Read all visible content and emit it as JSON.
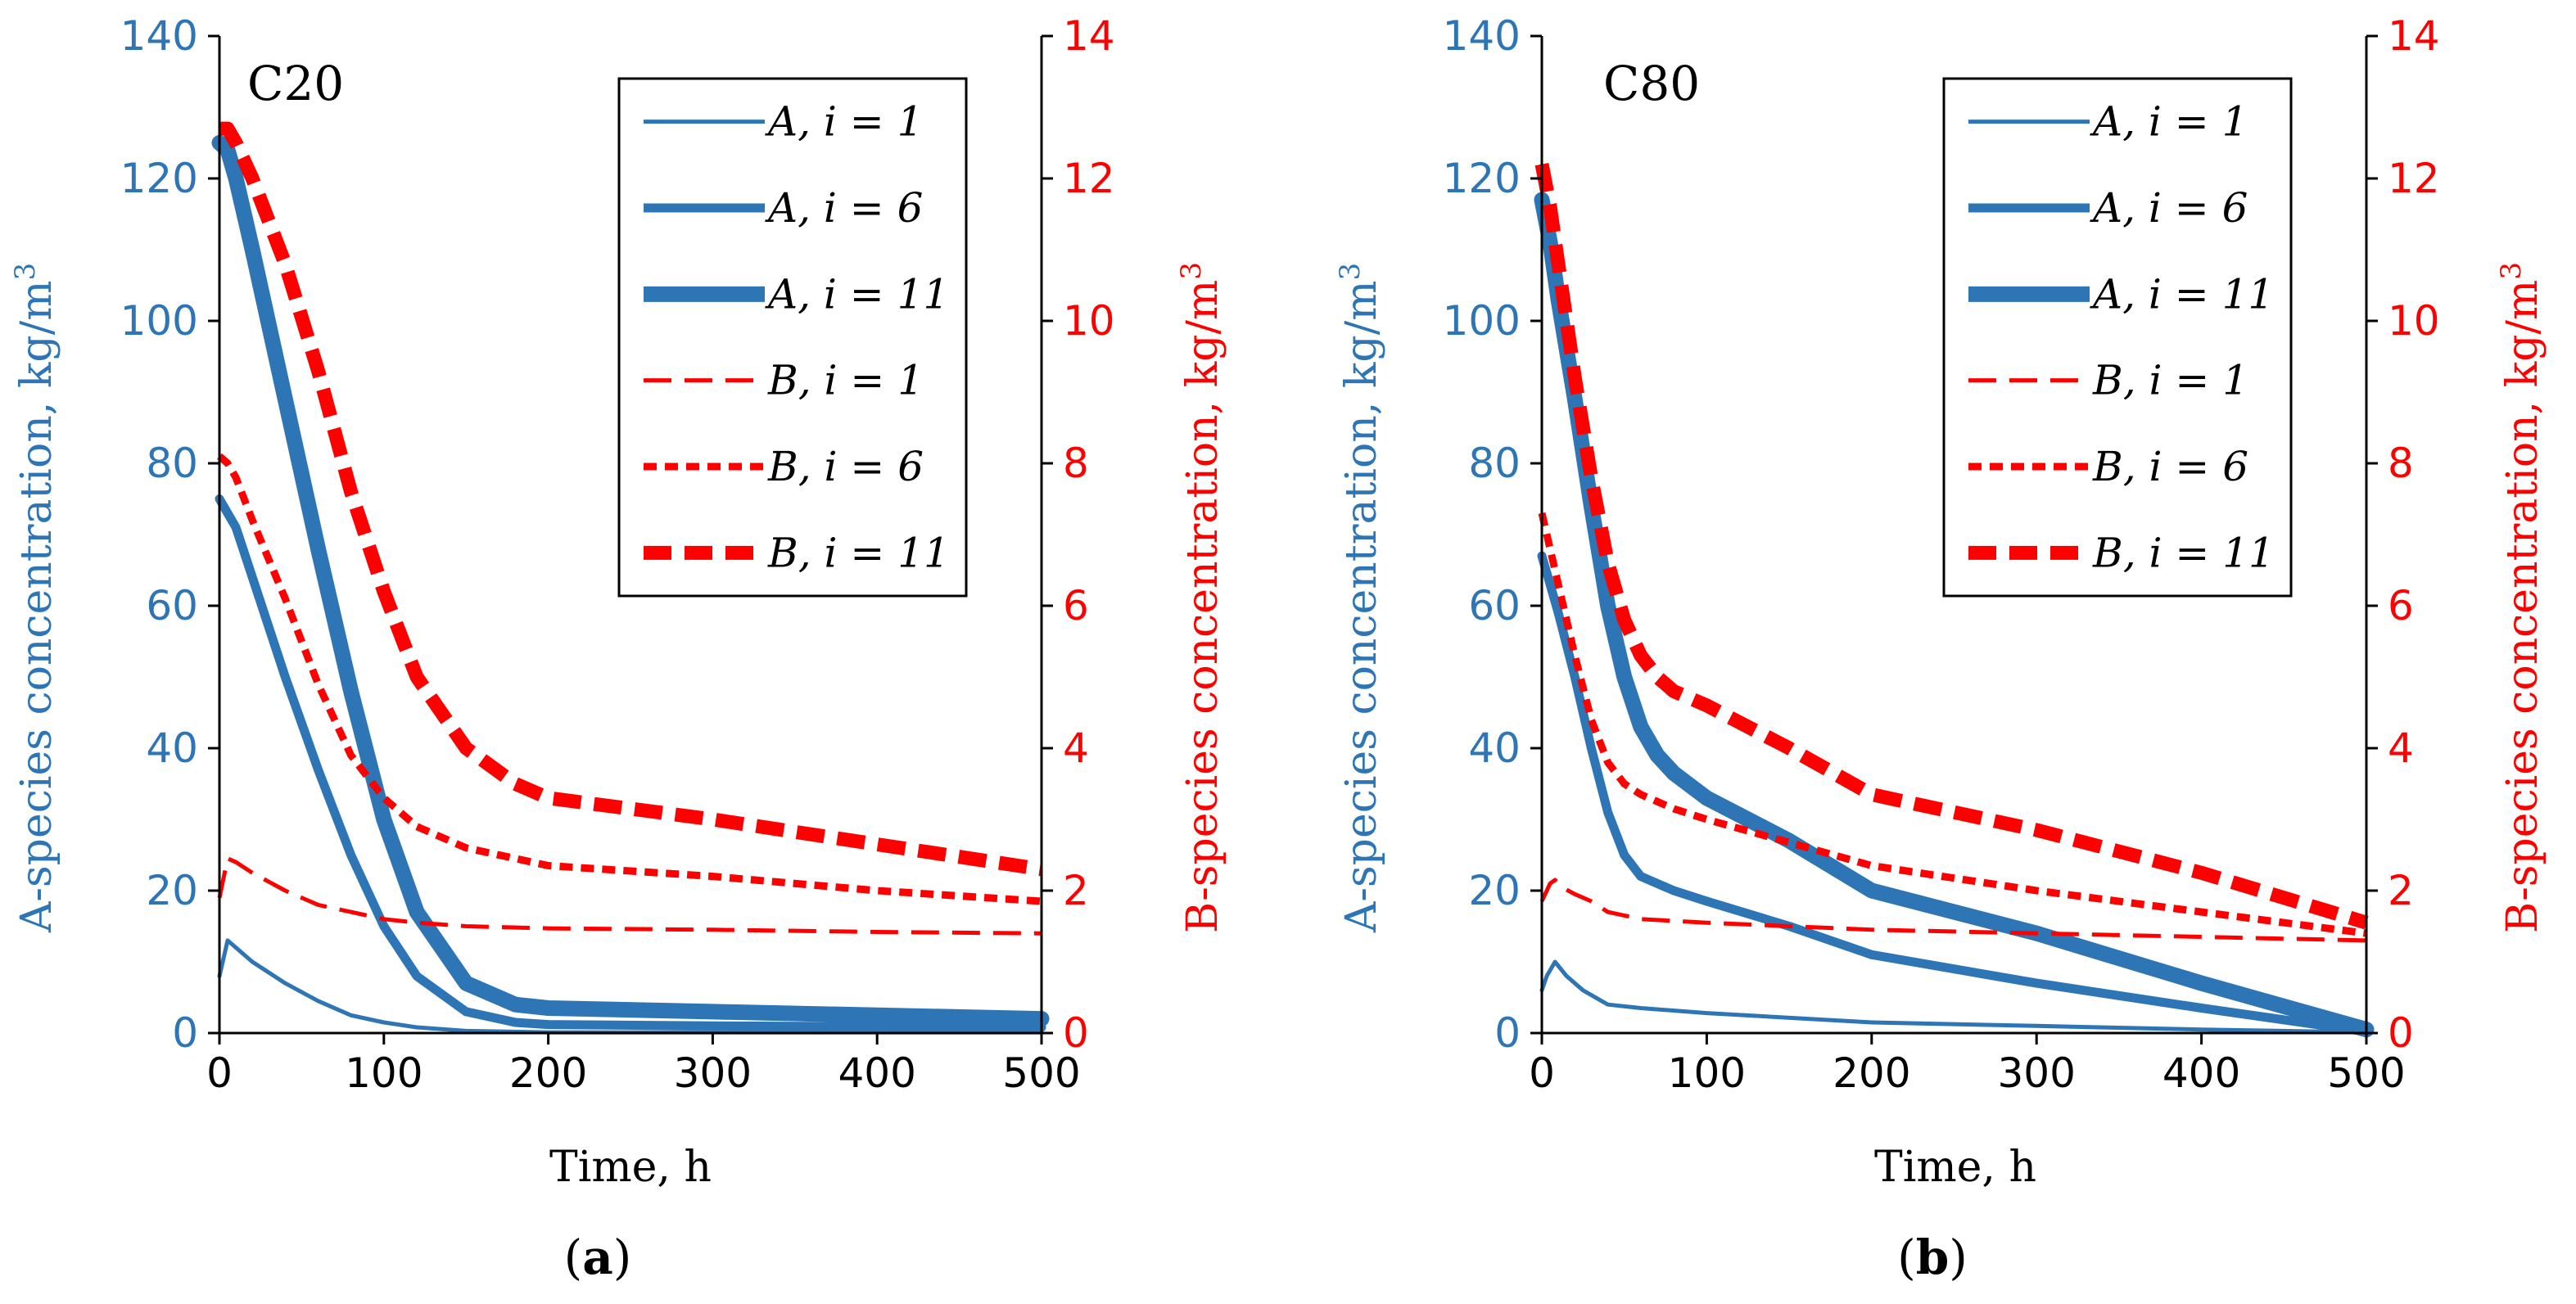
{
  "chart_data": [
    {
      "type": "line",
      "panel_label": "(a)",
      "panel_label_parts": {
        "open": "(",
        "letter": "a",
        "close": ")"
      },
      "annotation": "C20",
      "xlabel": "Time, h",
      "ylabel_left": "A-species concentration, kg/m",
      "ylabel_right": "B-species concentration, kg/m",
      "ylabel_sup": "3",
      "xlim": [
        0,
        500
      ],
      "ylim_left": [
        0,
        140
      ],
      "ylim_right": [
        0,
        14
      ],
      "x_ticks": [
        "0",
        "100",
        "200",
        "300",
        "400",
        "500"
      ],
      "y_left_ticks": [
        "0",
        "20",
        "40",
        "60",
        "80",
        "100",
        "120",
        "140"
      ],
      "y_right_ticks": [
        "0",
        "2",
        "4",
        "6",
        "8",
        "10",
        "12",
        "14"
      ],
      "legend_position": "top-right",
      "colors": {
        "A": "#2E75B6",
        "B": "#FF0000",
        "left_axis": "#2E75B6",
        "right_axis": "#FF0000"
      },
      "series": [
        {
          "name": "A, i = 1",
          "axis": "left",
          "style": "solid",
          "width": 5,
          "x": [
            0,
            5,
            10,
            20,
            40,
            60,
            80,
            100,
            120,
            150,
            200,
            300,
            500
          ],
          "y": [
            8,
            13,
            12,
            10,
            7,
            4.5,
            2.5,
            1.5,
            0.8,
            0.3,
            0.1,
            0.1,
            0.1
          ]
        },
        {
          "name": "A, i = 6",
          "axis": "left",
          "style": "solid",
          "width": 11,
          "x": [
            0,
            5,
            10,
            20,
            40,
            60,
            80,
            100,
            120,
            150,
            180,
            200,
            300,
            500
          ],
          "y": [
            75,
            73,
            71,
            64,
            50,
            37,
            25,
            15,
            8,
            3,
            1.5,
            1.2,
            1,
            0.8
          ]
        },
        {
          "name": "A, i = 11",
          "axis": "left",
          "style": "solid",
          "width": 19,
          "x": [
            0,
            5,
            10,
            20,
            40,
            60,
            80,
            100,
            120,
            150,
            180,
            200,
            300,
            500
          ],
          "y": [
            125,
            124,
            120,
            110,
            89,
            68,
            48,
            30,
            17,
            7,
            4,
            3.5,
            3,
            2
          ]
        },
        {
          "name": "B, i = 1",
          "axis": "right",
          "style": "long-dash",
          "width": 5,
          "x": [
            0,
            5,
            10,
            20,
            40,
            60,
            80,
            100,
            120,
            150,
            200,
            300,
            400,
            500
          ],
          "y": [
            1.9,
            2.45,
            2.4,
            2.25,
            2.0,
            1.8,
            1.7,
            1.6,
            1.55,
            1.5,
            1.47,
            1.45,
            1.42,
            1.4
          ]
        },
        {
          "name": "B, i = 6",
          "axis": "right",
          "style": "short-dash",
          "width": 9,
          "x": [
            0,
            5,
            10,
            20,
            40,
            60,
            80,
            100,
            120,
            150,
            200,
            300,
            400,
            500
          ],
          "y": [
            8.1,
            8.0,
            7.8,
            7.2,
            6.1,
            4.9,
            3.9,
            3.3,
            2.9,
            2.6,
            2.35,
            2.2,
            2.0,
            1.85
          ]
        },
        {
          "name": "B, i = 11",
          "axis": "right",
          "style": "heavy-dash",
          "width": 17,
          "x": [
            0,
            5,
            10,
            20,
            40,
            60,
            80,
            100,
            120,
            150,
            180,
            200,
            300,
            400,
            500
          ],
          "y": [
            12.7,
            12.7,
            12.5,
            12.0,
            10.8,
            9.3,
            7.6,
            6.2,
            5.0,
            4.0,
            3.5,
            3.3,
            3.0,
            2.65,
            2.3
          ]
        }
      ]
    },
    {
      "type": "line",
      "panel_label": "(b)",
      "panel_label_parts": {
        "open": "(",
        "letter": "b",
        "close": ")"
      },
      "annotation": "C80",
      "xlabel": "Time, h",
      "ylabel_left": "A-species concentration, kg/m",
      "ylabel_right": "B-species concentration, kg/m",
      "ylabel_sup": "3",
      "xlim": [
        0,
        500
      ],
      "ylim_left": [
        0,
        140
      ],
      "ylim_right": [
        0,
        14
      ],
      "x_ticks": [
        "0",
        "100",
        "200",
        "300",
        "400",
        "500"
      ],
      "y_left_ticks": [
        "0",
        "20",
        "40",
        "60",
        "80",
        "100",
        "120",
        "140"
      ],
      "y_right_ticks": [
        "0",
        "2",
        "4",
        "6",
        "8",
        "10",
        "12",
        "14"
      ],
      "legend_position": "top-right",
      "colors": {
        "A": "#2E75B6",
        "B": "#FF0000",
        "left_axis": "#2E75B6",
        "right_axis": "#FF0000"
      },
      "series": [
        {
          "name": "A, i = 1",
          "axis": "left",
          "style": "solid",
          "width": 5,
          "x": [
            0,
            3,
            8,
            15,
            25,
            40,
            60,
            100,
            200,
            300,
            400,
            500
          ],
          "y": [
            6,
            8,
            10,
            8,
            6,
            4,
            3.5,
            2.8,
            1.5,
            1.0,
            0.5,
            0.1
          ]
        },
        {
          "name": "A, i = 6",
          "axis": "left",
          "style": "solid",
          "width": 11,
          "x": [
            0,
            5,
            10,
            20,
            30,
            40,
            50,
            60,
            80,
            100,
            150,
            200,
            300,
            400,
            500
          ],
          "y": [
            67,
            63,
            59,
            50,
            40,
            31,
            25,
            22,
            20,
            18.5,
            15,
            11,
            7,
            3.5,
            0.2
          ]
        },
        {
          "name": "A, i = 11",
          "axis": "left",
          "style": "solid",
          "width": 19,
          "x": [
            0,
            5,
            10,
            20,
            30,
            40,
            50,
            60,
            70,
            80,
            100,
            150,
            200,
            300,
            400,
            500
          ],
          "y": [
            117,
            111,
            103,
            89,
            74,
            60,
            50,
            43,
            39,
            36.5,
            33,
            27,
            20,
            14,
            7,
            0.5
          ]
        },
        {
          "name": "B, i = 1",
          "axis": "right",
          "style": "long-dash",
          "width": 5,
          "x": [
            0,
            5,
            8,
            12,
            20,
            30,
            40,
            60,
            100,
            200,
            300,
            400,
            500
          ],
          "y": [
            1.85,
            2.1,
            2.15,
            2.05,
            1.95,
            1.85,
            1.7,
            1.6,
            1.55,
            1.45,
            1.4,
            1.35,
            1.3
          ]
        },
        {
          "name": "B, i = 6",
          "axis": "right",
          "style": "short-dash",
          "width": 9,
          "x": [
            0,
            5,
            10,
            20,
            30,
            40,
            50,
            60,
            80,
            100,
            200,
            300,
            400,
            500
          ],
          "y": [
            7.3,
            6.8,
            6.3,
            5.3,
            4.4,
            3.8,
            3.5,
            3.35,
            3.15,
            3.0,
            2.35,
            2.0,
            1.7,
            1.4
          ]
        },
        {
          "name": "B, i = 11",
          "axis": "right",
          "style": "heavy-dash",
          "width": 17,
          "x": [
            0,
            5,
            10,
            20,
            30,
            40,
            50,
            60,
            70,
            80,
            100,
            150,
            200,
            300,
            400,
            500
          ],
          "y": [
            12.2,
            11.6,
            10.8,
            9.2,
            7.8,
            6.6,
            5.8,
            5.3,
            5.0,
            4.8,
            4.6,
            4.0,
            3.35,
            2.85,
            2.25,
            1.55
          ]
        }
      ]
    }
  ]
}
